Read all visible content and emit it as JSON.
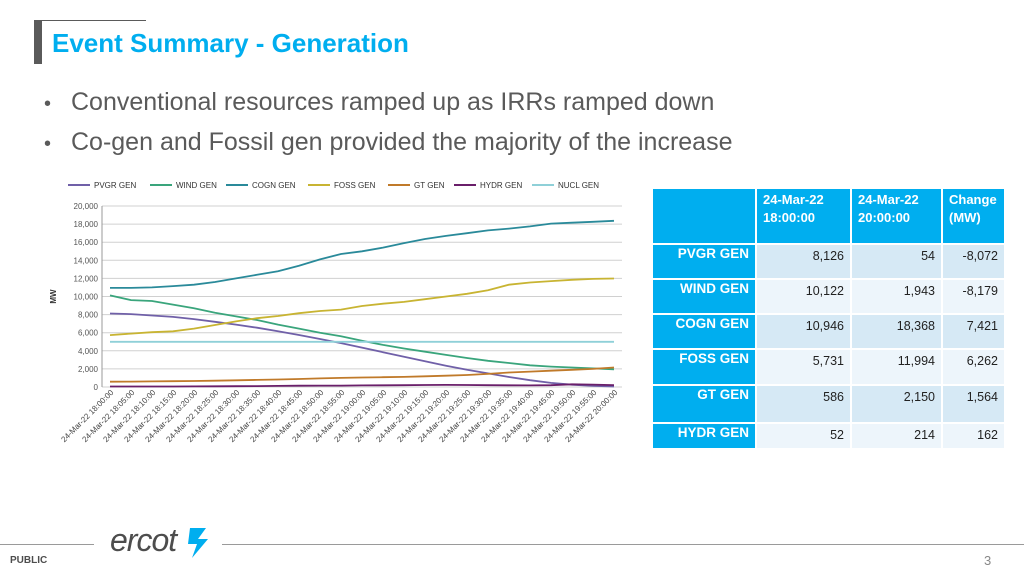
{
  "slide": {
    "title": "Event Summary - Generation",
    "bullets": [
      "Conventional resources ramped up as IRRs ramped down",
      "Co-gen and Fossil gen provided the majority of the increase"
    ],
    "footer_label": "PUBLIC",
    "page_number": "3",
    "logo_text": "ercot"
  },
  "table": {
    "headers": [
      [
        "24-Mar-22",
        "18:00:00"
      ],
      [
        "24-Mar-22",
        "20:00:00"
      ],
      [
        "Change",
        "(MW)"
      ]
    ],
    "rows": [
      {
        "label": "PVGR GEN",
        "v1": "8,126",
        "v2": "54",
        "chg": "-8,072"
      },
      {
        "label": "WIND GEN",
        "v1": "10,122",
        "v2": "1,943",
        "chg": "-8,179"
      },
      {
        "label": "COGN GEN",
        "v1": "10,946",
        "v2": "18,368",
        "chg": "7,421"
      },
      {
        "label": "FOSS GEN",
        "v1": "5,731",
        "v2": "11,994",
        "chg": "6,262"
      },
      {
        "label": "GT GEN",
        "v1": "586",
        "v2": "2,150",
        "chg": "1,564"
      },
      {
        "label": "HYDR GEN",
        "v1": "52",
        "v2": "214",
        "chg": "162"
      }
    ]
  },
  "chart_data": {
    "type": "line",
    "ylabel": "MW",
    "ylim": [
      0,
      20000
    ],
    "yticks": [
      0,
      2000,
      4000,
      6000,
      8000,
      10000,
      12000,
      14000,
      16000,
      18000,
      20000
    ],
    "ytick_labels": [
      "0",
      "2,000",
      "4,000",
      "6,000",
      "8,000",
      "10,000",
      "12,000",
      "14,000",
      "16,000",
      "18,000",
      "20,000"
    ],
    "grid": true,
    "legend_position": "top",
    "x": [
      "24-Mar-22 18:00:00",
      "24-Mar-22 18:05:00",
      "24-Mar-22 18:10:00",
      "24-Mar-22 18:15:00",
      "24-Mar-22 18:20:00",
      "24-Mar-22 18:25:00",
      "24-Mar-22 18:30:00",
      "24-Mar-22 18:35:00",
      "24-Mar-22 18:40:00",
      "24-Mar-22 18:45:00",
      "24-Mar-22 18:50:00",
      "24-Mar-22 18:55:00",
      "24-Mar-22 19:00:00",
      "24-Mar-22 19:05:00",
      "24-Mar-22 19:10:00",
      "24-Mar-22 19:15:00",
      "24-Mar-22 19:20:00",
      "24-Mar-22 19:25:00",
      "24-Mar-22 19:30:00",
      "24-Mar-22 19:35:00",
      "24-Mar-22 19:40:00",
      "24-Mar-22 19:45:00",
      "24-Mar-22 19:50:00",
      "24-Mar-22 19:55:00",
      "24-Mar-22 20:00:00"
    ],
    "series": [
      {
        "name": "PVGR GEN",
        "color": "#7060a8",
        "values": [
          8126,
          8050,
          7900,
          7750,
          7500,
          7200,
          6900,
          6550,
          6150,
          5750,
          5300,
          4850,
          4350,
          3850,
          3350,
          2850,
          2350,
          1900,
          1500,
          1100,
          750,
          450,
          250,
          120,
          54
        ]
      },
      {
        "name": "WIND GEN",
        "color": "#3aa57c",
        "values": [
          10122,
          9600,
          9500,
          9100,
          8700,
          8200,
          7800,
          7400,
          6900,
          6450,
          6000,
          5600,
          5100,
          4650,
          4250,
          3900,
          3550,
          3200,
          2900,
          2650,
          2400,
          2250,
          2150,
          2050,
          1943
        ]
      },
      {
        "name": "COGN GEN",
        "color": "#2a8a9a",
        "values": [
          10946,
          10950,
          11000,
          11150,
          11300,
          11600,
          12000,
          12400,
          12800,
          13400,
          14100,
          14700,
          15000,
          15400,
          15900,
          16350,
          16700,
          17000,
          17300,
          17500,
          17750,
          18050,
          18150,
          18250,
          18368
        ]
      },
      {
        "name": "FOSS GEN",
        "color": "#c8b432",
        "values": [
          5731,
          5900,
          6050,
          6150,
          6450,
          6850,
          7250,
          7600,
          7850,
          8150,
          8400,
          8550,
          8950,
          9200,
          9400,
          9700,
          10000,
          10300,
          10700,
          11300,
          11550,
          11700,
          11850,
          11950,
          11994
        ]
      },
      {
        "name": "GT GEN",
        "color": "#c07a2a",
        "values": [
          586,
          600,
          620,
          640,
          660,
          700,
          740,
          780,
          830,
          880,
          950,
          1000,
          1050,
          1080,
          1120,
          1180,
          1250,
          1330,
          1450,
          1600,
          1700,
          1800,
          1900,
          2000,
          2150
        ]
      },
      {
        "name": "HYDR GEN",
        "color": "#6a1f6a",
        "values": [
          52,
          52,
          55,
          60,
          70,
          80,
          90,
          100,
          120,
          140,
          150,
          160,
          175,
          190,
          200,
          220,
          230,
          220,
          200,
          190,
          180,
          200,
          300,
          260,
          214
        ]
      },
      {
        "name": "NUCL GEN",
        "color": "#8fd0d8",
        "values": [
          5000,
          5000,
          5000,
          5000,
          5000,
          5000,
          5000,
          5000,
          5000,
          5000,
          5000,
          5000,
          5000,
          5000,
          5000,
          5000,
          5000,
          5000,
          5000,
          5000,
          5000,
          5000,
          5000,
          5000,
          5000
        ]
      }
    ]
  }
}
